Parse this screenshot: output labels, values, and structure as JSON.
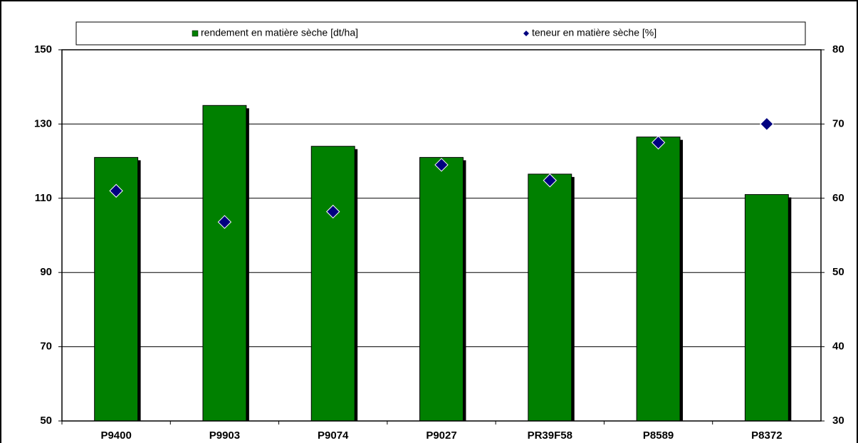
{
  "chart_data": {
    "type": "bar",
    "categories": [
      "P9400",
      "P9903",
      "P9074",
      "P9027",
      "PR39F58",
      "P8589",
      "P8372"
    ],
    "series": [
      {
        "name": "rendement en matière sèche [dt/ha]",
        "color": "#008000",
        "values": [
          121,
          135,
          124,
          121,
          116.5,
          126.5,
          111
        ]
      },
      {
        "name": "teneur en matière sèche [%]",
        "color": "#000080",
        "axis": "y2",
        "marker": "diamond",
        "values": [
          61,
          56.8,
          58.2,
          64.5,
          62.4,
          67.5,
          70
        ]
      }
    ],
    "ylim": [
      50,
      150
    ],
    "yticks": [
      50,
      70,
      90,
      110,
      130,
      150
    ],
    "y2lim": [
      30,
      80
    ],
    "y2ticks": [
      30,
      40,
      50,
      60,
      70,
      80
    ],
    "grid": true,
    "legend": "top"
  }
}
